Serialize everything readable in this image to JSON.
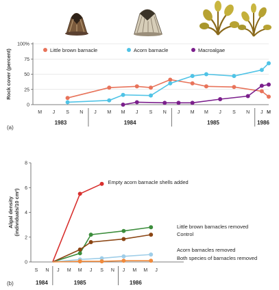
{
  "chart_data": [
    {
      "type": "line",
      "panel_label": "(a)",
      "ylabel": "Rock cover (percent)",
      "yticks": [
        "0",
        "25",
        "50",
        "75",
        "100%"
      ],
      "ylim": [
        0,
        100
      ],
      "xlim": [
        4.5,
        21.5
      ],
      "month_ticks": [
        {
          "x": 5,
          "label": "M"
        },
        {
          "x": 6,
          "label": "J"
        },
        {
          "x": 7,
          "label": "S"
        },
        {
          "x": 8,
          "label": "N"
        },
        {
          "x": 9,
          "label": "J"
        },
        {
          "x": 10,
          "label": "M"
        },
        {
          "x": 11,
          "label": "M"
        },
        {
          "x": 12,
          "label": "J"
        },
        {
          "x": 13,
          "label": "S"
        },
        {
          "x": 14,
          "label": "N"
        },
        {
          "x": 15,
          "label": "J"
        },
        {
          "x": 16,
          "label": "M"
        },
        {
          "x": 17,
          "label": "M"
        },
        {
          "x": 18,
          "label": "J"
        },
        {
          "x": 19,
          "label": "S"
        },
        {
          "x": 20,
          "label": "N"
        },
        {
          "x": 21,
          "label": "J"
        },
        {
          "x": 22,
          "label": "M"
        },
        {
          "x": 23,
          "label": "M"
        }
      ],
      "years": [
        {
          "x": 6.5,
          "label": "1983"
        },
        {
          "x": 11.5,
          "label": "1984"
        },
        {
          "x": 17.5,
          "label": "1985"
        },
        {
          "x": 22.0,
          "label": "1986"
        }
      ],
      "year_dividers": [
        8.5,
        14.5,
        20.5
      ],
      "series": [
        {
          "name": "Little brown barnacle",
          "color": "#e8735a",
          "x": [
            7,
            10,
            12,
            13,
            14.4,
            16,
            17,
            19,
            21,
            23
          ],
          "y": [
            11,
            28,
            30,
            28,
            41,
            35,
            30,
            29,
            22,
            13
          ]
        },
        {
          "name": "Acorn barnacle",
          "color": "#4fc3e6",
          "x": [
            7,
            10,
            11,
            13,
            14.4,
            16,
            17,
            19,
            21,
            23
          ],
          "y": [
            4,
            7,
            16,
            15,
            35,
            47,
            50,
            47,
            57,
            68
          ]
        },
        {
          "name": "Macroalgae",
          "color": "#7b1f8c",
          "x": [
            11,
            12,
            14,
            15,
            16,
            18,
            20,
            21,
            23
          ],
          "y": [
            0,
            4,
            3,
            3,
            3,
            9,
            14,
            31,
            33
          ]
        }
      ],
      "legend_position": "top"
    },
    {
      "type": "line",
      "panel_label": "(b)",
      "ylabel": "Algal density (individuals/10 cm²)",
      "yticks": [
        "0",
        "2",
        "4",
        "6",
        "8"
      ],
      "ylim": [
        0,
        8
      ],
      "xlim": [
        0,
        14
      ],
      "month_ticks": [
        {
          "x": 0.5,
          "label": "S"
        },
        {
          "x": 1.5,
          "label": "N"
        },
        {
          "x": 2.5,
          "label": "J"
        },
        {
          "x": 3.5,
          "label": "M"
        },
        {
          "x": 4.5,
          "label": "M"
        },
        {
          "x": 5.5,
          "label": "J"
        },
        {
          "x": 6.5,
          "label": "S"
        },
        {
          "x": 7.5,
          "label": "N"
        },
        {
          "x": 8.5,
          "label": "J"
        },
        {
          "x": 9.5,
          "label": "M"
        },
        {
          "x": 10.5,
          "label": "M"
        },
        {
          "x": 11.5,
          "label": "J"
        }
      ],
      "years": [
        {
          "x": 1.0,
          "label": "1984"
        },
        {
          "x": 4.5,
          "label": "1985"
        },
        {
          "x": 9.6,
          "label": "1986"
        }
      ],
      "year_dividers": [
        2.0,
        8.0
      ],
      "series": [
        {
          "name": "Empty acorn barnacle shells added",
          "color": "#d8302e",
          "x": [
            2,
            4.5,
            6.5
          ],
          "y": [
            0,
            5.5,
            6.3
          ]
        },
        {
          "name": "Little brown barnacles removed",
          "color": "#3c8d3c",
          "x": [
            2,
            4.5,
            5.5,
            8.5,
            11
          ],
          "y": [
            0,
            0.7,
            2.2,
            2.5,
            2.8
          ]
        },
        {
          "name": "Control",
          "color": "#8b4513",
          "x": [
            2,
            4.5,
            5.5,
            8.5,
            11
          ],
          "y": [
            0,
            1.0,
            1.6,
            1.85,
            2.2
          ]
        },
        {
          "name": "Acorn barnacles removed",
          "color": "#9ecde8",
          "x": [
            2,
            4.5,
            6.5,
            8.5,
            11
          ],
          "y": [
            0,
            0.2,
            0.3,
            0.45,
            0.6
          ]
        },
        {
          "name": "Both species of barnacles removed",
          "color": "#f08a3c",
          "x": [
            2,
            4.5,
            6.5,
            8.5,
            11
          ],
          "y": [
            0,
            0.05,
            0.05,
            0.1,
            0.1
          ]
        }
      ]
    }
  ],
  "illustrations": [
    {
      "name": "little-brown-barnacle-illustration"
    },
    {
      "name": "acorn-barnacle-illustration"
    },
    {
      "name": "macroalgae-illustration"
    }
  ]
}
